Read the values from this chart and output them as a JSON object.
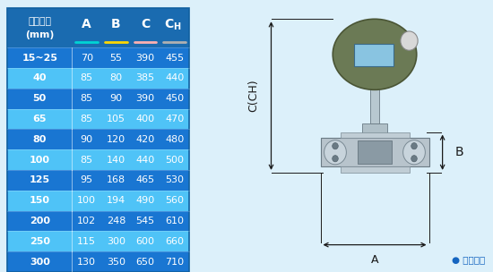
{
  "header_line1": "仪表口径",
  "header_line2": "(mm)",
  "col_headers": [
    "A",
    "B",
    "C",
    "CH"
  ],
  "underline_colors": [
    "#00D4D4",
    "#FFD700",
    "#FFB0B0",
    "#B0B0B0"
  ],
  "rows": [
    [
      "15~25",
      "70",
      "55",
      "390",
      "455"
    ],
    [
      "40",
      "85",
      "80",
      "385",
      "440"
    ],
    [
      "50",
      "85",
      "90",
      "390",
      "450"
    ],
    [
      "65",
      "85",
      "105",
      "400",
      "470"
    ],
    [
      "80",
      "90",
      "120",
      "420",
      "480"
    ],
    [
      "100",
      "85",
      "140",
      "440",
      "500"
    ],
    [
      "125",
      "95",
      "168",
      "465",
      "530"
    ],
    [
      "150",
      "100",
      "194",
      "490",
      "560"
    ],
    [
      "200",
      "102",
      "248",
      "545",
      "610"
    ],
    [
      "250",
      "115",
      "300",
      "600",
      "660"
    ],
    [
      "300",
      "130",
      "350",
      "650",
      "710"
    ]
  ],
  "row_bg_dark": "#1976D2",
  "row_bg_light": "#4FC3F7",
  "header_bg": "#1A6BB0",
  "text_white": "#FFFFFF",
  "border_color": "#1565C0",
  "bg_color": "#DCF0FA",
  "diagram_label_C": "C(CH)",
  "diagram_label_A": "A",
  "diagram_label_B": "B",
  "diagram_note": "● 常规仪表",
  "dim_color": "#1A1A1A",
  "dim_blue": "#1565C0"
}
